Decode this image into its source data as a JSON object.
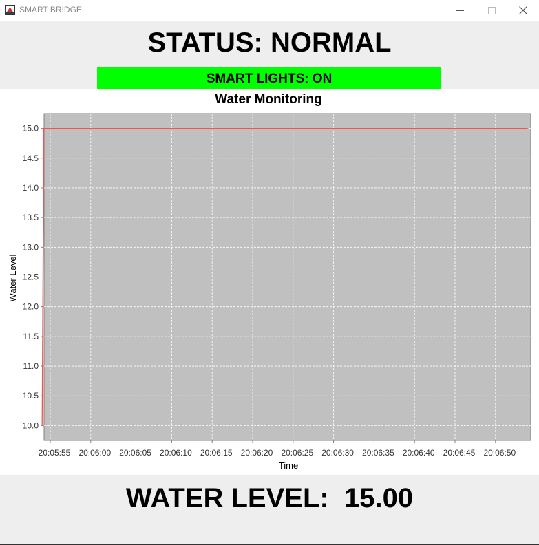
{
  "window": {
    "title": "SMART BRIDGE",
    "controls": {
      "minimize": "minimize-icon",
      "maximize": "maximize-icon",
      "close": "close-icon"
    }
  },
  "status": {
    "text": "STATUS: NORMAL"
  },
  "lights": {
    "text": "SMART LIGHTS: ON",
    "color": "#00ff00"
  },
  "water": {
    "label": "WATER LEVEL:",
    "value": "15.00"
  },
  "chart_data": {
    "type": "line",
    "title": "Water Monitoring",
    "xlabel": "Time",
    "ylabel": "Water Level",
    "ylim": [
      9.75,
      15.25
    ],
    "yticks": [
      "15.0",
      "14.5",
      "14.0",
      "13.5",
      "13.0",
      "12.5",
      "12.0",
      "11.5",
      "11.0",
      "10.5",
      "10.0"
    ],
    "xticks": [
      "20:05:55",
      "20:06:00",
      "20:06:05",
      "20:06:10",
      "20:06:15",
      "20:06:20",
      "20:06:25",
      "20:06:30",
      "20:06:35",
      "20:06:40",
      "20:06:45",
      "20:06:50"
    ],
    "grid": true,
    "background": "#c0c0c0",
    "series": [
      {
        "color": "#ff4d4d",
        "x": [
          "20:05:54",
          "20:05:54.2",
          "20:06:54"
        ],
        "y": [
          10.0,
          15.0,
          15.0
        ]
      }
    ]
  }
}
